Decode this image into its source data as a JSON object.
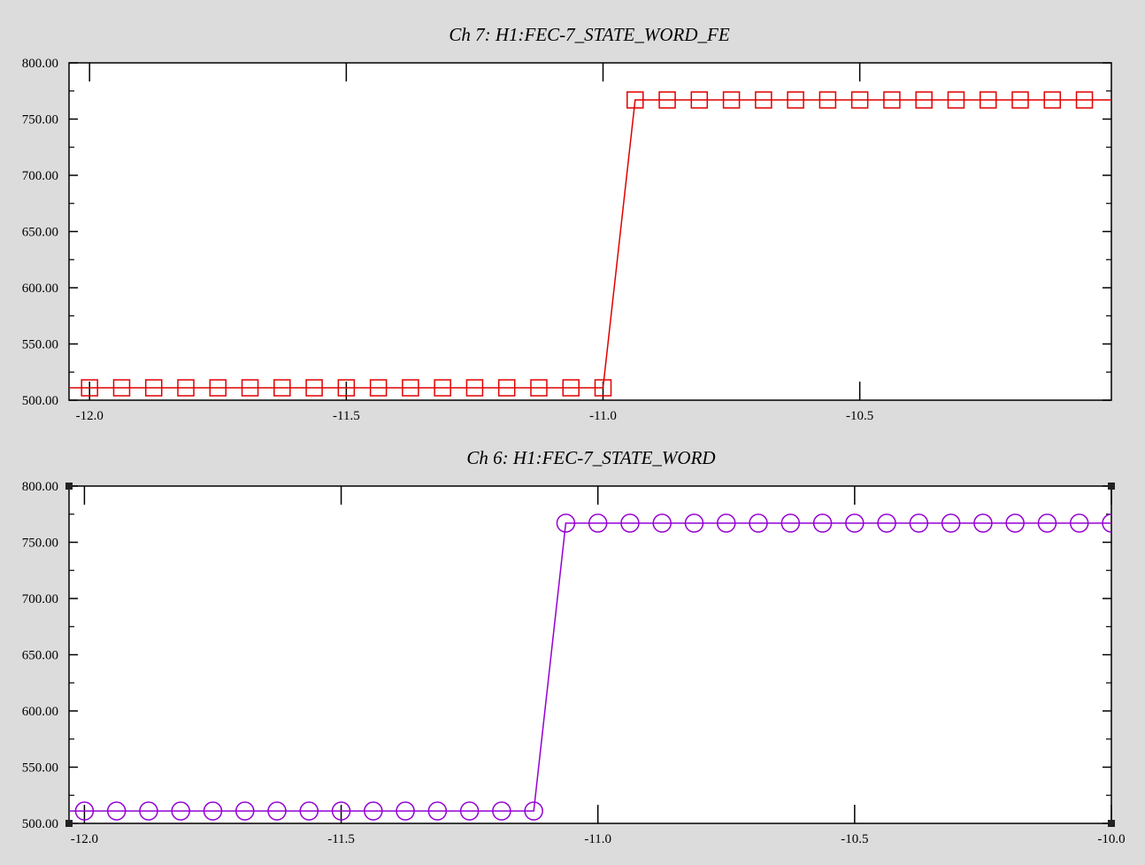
{
  "colors": {
    "background": "#dcdcdc",
    "plot_bg": "#ffffff",
    "axis": "#000000"
  },
  "chart_data": [
    {
      "type": "line",
      "title": "Ch 7:  H1:FEC-7_STATE_WORD_FE",
      "xlim": [
        -12.04,
        -10.01
      ],
      "ylim": [
        500,
        800
      ],
      "xticks": [
        -12.0,
        -11.5,
        -11.0,
        -10.5
      ],
      "xtick_labels": [
        "-12.0",
        "-11.5",
        "-11.0",
        "-10.5"
      ],
      "yticks": [
        500,
        550,
        600,
        650,
        700,
        750,
        800
      ],
      "ytick_labels": [
        "500.00",
        "550.00",
        "600.00",
        "650.00",
        "700.00",
        "750.00",
        "800.00"
      ],
      "grid": false,
      "series": [
        {
          "color": "#e00000",
          "marker": "square",
          "x": [
            -12.0,
            -11.9375,
            -11.875,
            -11.8125,
            -11.75,
            -11.6875,
            -11.625,
            -11.5625,
            -11.5,
            -11.4375,
            -11.375,
            -11.3125,
            -11.25,
            -11.1875,
            -11.125,
            -11.0625,
            -11.0,
            -10.9375,
            -10.875,
            -10.8125,
            -10.75,
            -10.6875,
            -10.625,
            -10.5625,
            -10.5,
            -10.4375,
            -10.375,
            -10.3125,
            -10.25,
            -10.1875,
            -10.125,
            -10.0625
          ],
          "y": [
            511,
            511,
            511,
            511,
            511,
            511,
            511,
            511,
            511,
            511,
            511,
            511,
            511,
            511,
            511,
            511,
            511,
            767,
            767,
            767,
            767,
            767,
            767,
            767,
            767,
            767,
            767,
            767,
            767,
            767,
            767,
            767
          ]
        }
      ]
    },
    {
      "type": "line",
      "title": "Ch 6:  H1:FEC-7_STATE_WORD",
      "xlim": [
        -12.03,
        -10.0
      ],
      "ylim": [
        500,
        800
      ],
      "xticks": [
        -12.0,
        -11.5,
        -11.0,
        -10.5,
        -10.0
      ],
      "xtick_labels": [
        "-12.0",
        "-11.5",
        "-11.0",
        "-10.5",
        "-10.0"
      ],
      "yticks": [
        500,
        550,
        600,
        650,
        700,
        750,
        800
      ],
      "ytick_labels": [
        "500.00",
        "550.00",
        "600.00",
        "650.00",
        "700.00",
        "750.00",
        "800.00"
      ],
      "grid": false,
      "series": [
        {
          "color": "#9400d3",
          "marker": "circle",
          "x": [
            -12.0,
            -11.9375,
            -11.875,
            -11.8125,
            -11.75,
            -11.6875,
            -11.625,
            -11.5625,
            -11.5,
            -11.4375,
            -11.375,
            -11.3125,
            -11.25,
            -11.1875,
            -11.125,
            -11.0625,
            -11.0,
            -10.9375,
            -10.875,
            -10.8125,
            -10.75,
            -10.6875,
            -10.625,
            -10.5625,
            -10.5,
            -10.4375,
            -10.375,
            -10.3125,
            -10.25,
            -10.1875,
            -10.125,
            -10.0625,
            -10.0
          ],
          "y": [
            511,
            511,
            511,
            511,
            511,
            511,
            511,
            511,
            511,
            511,
            511,
            511,
            511,
            511,
            511,
            767,
            767,
            767,
            767,
            767,
            767,
            767,
            767,
            767,
            767,
            767,
            767,
            767,
            767,
            767,
            767,
            767,
            767
          ]
        }
      ]
    }
  ]
}
